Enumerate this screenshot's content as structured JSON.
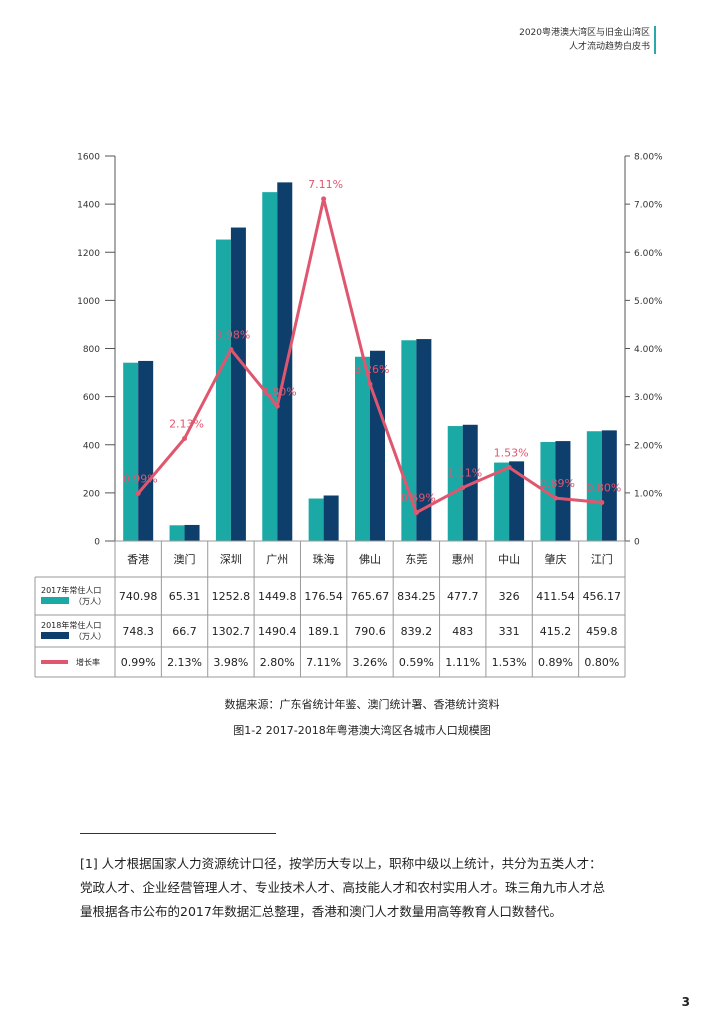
{
  "header": {
    "line1": "2020粤港澳大湾区与旧金山湾区",
    "line2": "人才流动趋势白皮书"
  },
  "chart_data": {
    "type": "bar",
    "categories": [
      "香港",
      "澳门",
      "深圳",
      "广州",
      "珠海",
      "佛山",
      "东莞",
      "惠州",
      "中山",
      "肇庆",
      "江门"
    ],
    "series": [
      {
        "name": "2017年常住人口（万人）",
        "values": [
          740.98,
          65.31,
          1252.8,
          1449.8,
          176.54,
          765.67,
          834.25,
          477.7,
          326,
          411.54,
          456.17
        ],
        "color": "#1aa9a5"
      },
      {
        "name": "2018年常住人口（万人）",
        "values": [
          748.3,
          66.7,
          1302.7,
          1490.4,
          189.1,
          790.6,
          839.2,
          483,
          331,
          415.2,
          459.8
        ],
        "color": "#0e3e6c"
      },
      {
        "name": "增长率",
        "type": "line",
        "axis": "right",
        "values": [
          0.99,
          2.13,
          3.98,
          2.8,
          7.11,
          3.26,
          0.59,
          1.11,
          1.53,
          0.89,
          0.8
        ],
        "color": "#e0566f"
      }
    ],
    "y_left": {
      "ylim": [
        0,
        1600
      ],
      "ticks": [
        "0",
        "200",
        "400",
        "600",
        "800",
        "1000",
        "1200",
        "1400",
        "1600"
      ]
    },
    "y_right": {
      "ylim": [
        0,
        8
      ],
      "ticks": [
        "0",
        "1.00%",
        "2.00%",
        "3.00%",
        "4.00%",
        "5.00%",
        "6.00%",
        "7.00%",
        "8.00%"
      ]
    },
    "line_labels": [
      "0.99%",
      "2.13%",
      "3.98%",
      "2.80%",
      "7.11%",
      "3.26%",
      "0.59%",
      "1.11%",
      "1.53%",
      "0.89%",
      "0.80%"
    ],
    "table": {
      "row_labels": [
        [
          "2017年常住人口",
          "（万人）"
        ],
        [
          "2018年常住人口",
          "（万人）"
        ],
        [
          "增长率"
        ]
      ],
      "rows": [
        [
          "740.98",
          "65.31",
          "1252.8",
          "1449.8",
          "176.54",
          "765.67",
          "834.25",
          "477.7",
          "326",
          "411.54",
          "456.17"
        ],
        [
          "748.3",
          "66.7",
          "1302.7",
          "1490.4",
          "189.1",
          "790.6",
          "839.2",
          "483",
          "331",
          "415.2",
          "459.8"
        ],
        [
          "0.99%",
          "2.13%",
          "3.98%",
          "2.80%",
          "7.11%",
          "3.26%",
          "0.59%",
          "1.11%",
          "1.53%",
          "0.89%",
          "0.80%"
        ]
      ]
    },
    "grid": false,
    "legend": "table-left"
  },
  "source": "数据来源：广东省统计年鉴、澳门统计署、香港统计资料",
  "caption": "图1-2 2017-2018年粤港澳大湾区各城市人口规模图",
  "footnote": {
    "line1": "[1] 人才根据国家人力资源统计口径，按学历大专以上，职称中级以上统计，共分为五类人才：",
    "line2": "党政人才、企业经营管理人才、专业技术人才、高技能人才和农村实用人才。珠三角九市人才总",
    "line3": "量根据各市公布的2017年数据汇总整理，香港和澳门人才数量用高等教育人口数替代。"
  },
  "page_number": "3"
}
